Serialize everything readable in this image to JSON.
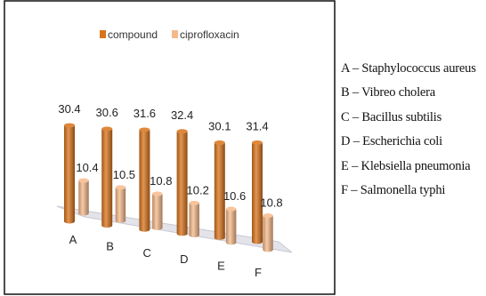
{
  "chart_data": {
    "type": "bar",
    "categories": [
      "A",
      "B",
      "C",
      "D",
      "E",
      "F"
    ],
    "series": [
      {
        "name": "compound",
        "values": [
          30.4,
          30.6,
          31.6,
          32.4,
          30.1,
          31.4
        ],
        "color": "#d8731b"
      },
      {
        "name": "ciprofloxacin",
        "values": [
          10.4,
          10.5,
          10.8,
          10.2,
          10.6,
          10.8
        ],
        "color": "#f6b98a"
      }
    ],
    "data_labels": [
      "30.4",
      "30.6",
      "31.6",
      "32.4",
      "30.1",
      "31.4",
      "10.4",
      "10.5",
      "10.8",
      "10.2",
      "10.6",
      "10.8"
    ],
    "legend_position": "top",
    "grid": false,
    "style": "3d-cylinder",
    "title": "",
    "xlabel": "",
    "ylabel": ""
  },
  "key": [
    "A – Staphylococcus aureus",
    "B – Vibreo cholera",
    "C – Bacillus subtilis",
    "D – Escherichia coli",
    "E – Klebsiella pneumonia",
    "F – Salmonella typhi"
  ],
  "colors": {
    "frame": "#111111",
    "floor": "#e3e3ea",
    "floor_edge": "#c9c9d4"
  }
}
